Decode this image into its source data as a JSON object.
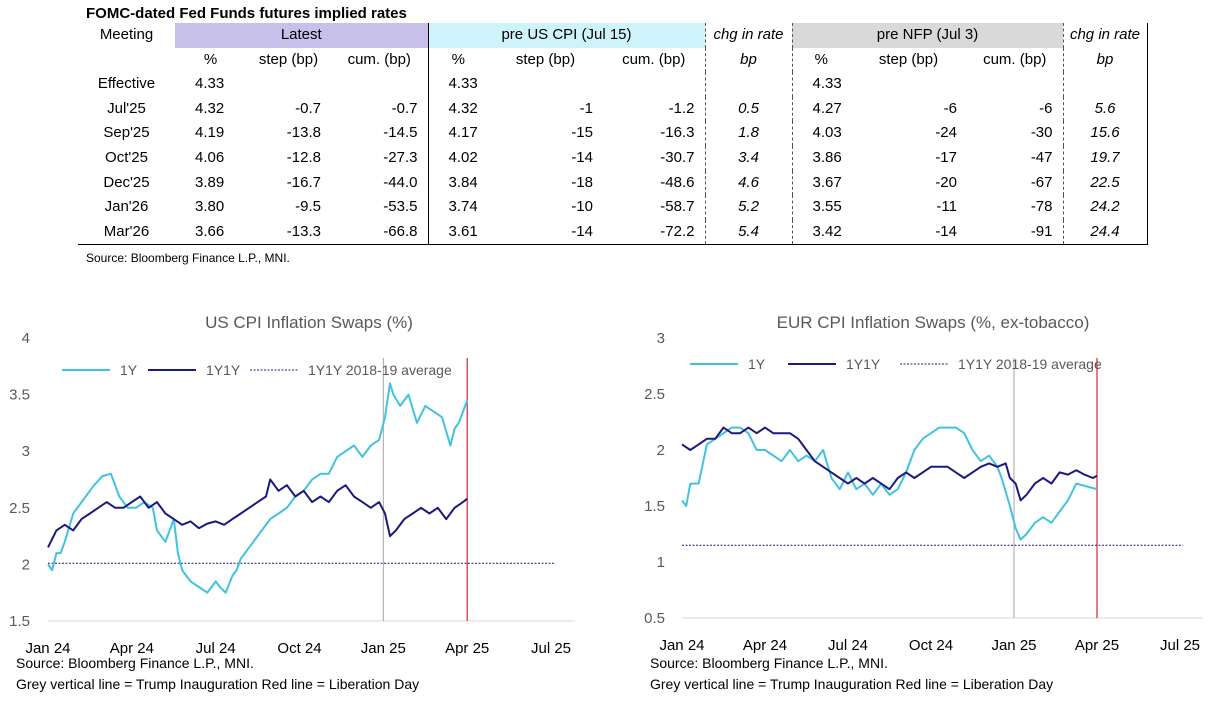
{
  "table": {
    "title": "FOMC-dated Fed Funds futures implied rates",
    "meeting_header": "Meeting",
    "group_headers": {
      "latest": "Latest",
      "pre_cpi": "pre US CPI (Jul 15)",
      "chg1": "chg in rate",
      "pre_nfp": "pre NFP (Jul 3)",
      "chg2": "chg in rate"
    },
    "sub_headers": {
      "pct": "%",
      "step": "step (bp)",
      "cum": "cum. (bp)",
      "bp": "bp"
    },
    "rows": [
      {
        "meeting": "Effective",
        "l_pct": "4.33",
        "l_step": "",
        "l_cum": "",
        "c_pct": "4.33",
        "c_step": "",
        "c_cum": "",
        "chg1": "",
        "n_pct": "4.33",
        "n_step": "",
        "n_cum": "",
        "chg2": ""
      },
      {
        "meeting": "Jul'25",
        "l_pct": "4.32",
        "l_step": "-0.7",
        "l_cum": "-0.7",
        "c_pct": "4.32",
        "c_step": "-1",
        "c_cum": "-1.2",
        "chg1": "0.5",
        "n_pct": "4.27",
        "n_step": "-6",
        "n_cum": "-6",
        "chg2": "5.6"
      },
      {
        "meeting": "Sep'25",
        "l_pct": "4.19",
        "l_step": "-13.8",
        "l_cum": "-14.5",
        "c_pct": "4.17",
        "c_step": "-15",
        "c_cum": "-16.3",
        "chg1": "1.8",
        "n_pct": "4.03",
        "n_step": "-24",
        "n_cum": "-30",
        "chg2": "15.6"
      },
      {
        "meeting": "Oct'25",
        "l_pct": "4.06",
        "l_step": "-12.8",
        "l_cum": "-27.3",
        "c_pct": "4.02",
        "c_step": "-14",
        "c_cum": "-30.7",
        "chg1": "3.4",
        "n_pct": "3.86",
        "n_step": "-17",
        "n_cum": "-47",
        "chg2": "19.7"
      },
      {
        "meeting": "Dec'25",
        "l_pct": "3.89",
        "l_step": "-16.7",
        "l_cum": "-44.0",
        "c_pct": "3.84",
        "c_step": "-18",
        "c_cum": "-48.6",
        "chg1": "4.6",
        "n_pct": "3.67",
        "n_step": "-20",
        "n_cum": "-67",
        "chg2": "22.5"
      },
      {
        "meeting": "Jan'26",
        "l_pct": "3.80",
        "l_step": "-9.5",
        "l_cum": "-53.5",
        "c_pct": "3.74",
        "c_step": "-10",
        "c_cum": "-58.7",
        "chg1": "5.2",
        "n_pct": "3.55",
        "n_step": "-11",
        "n_cum": "-78",
        "chg2": "24.2"
      },
      {
        "meeting": "Mar'26",
        "l_pct": "3.66",
        "l_step": "-13.3",
        "l_cum": "-66.8",
        "c_pct": "3.61",
        "c_step": "-14",
        "c_cum": "-72.2",
        "chg1": "5.4",
        "n_pct": "3.42",
        "n_step": "-14",
        "n_cum": "-91",
        "chg2": "24.4"
      }
    ],
    "source": "Source: Bloomberg Finance L.P., MNI."
  },
  "chart_data": [
    {
      "type": "line",
      "title": "US CPI Inflation Swaps (%)",
      "x_ticks": [
        "Jan 24",
        "Apr 24",
        "Jul 24",
        "Oct 24",
        "Jan 25",
        "Apr 25",
        "Jul 25"
      ],
      "y_ticks": [
        "4",
        "3.5",
        "3",
        "2.5",
        "2",
        "1.5"
      ],
      "ylim": [
        1.5,
        4
      ],
      "legend_position": "top-left",
      "vlines": {
        "grey": "Jan 25",
        "red": "Apr 25"
      },
      "reference_line": {
        "name": "1Y1Y 2018-19 average",
        "value": 2.01
      },
      "series": [
        {
          "name": "1Y",
          "color": "#41c3e0",
          "values": [
            [
              0,
              2.0
            ],
            [
              0.05,
              1.95
            ],
            [
              0.1,
              2.1
            ],
            [
              0.15,
              2.1
            ],
            [
              0.2,
              2.2
            ],
            [
              0.3,
              2.45
            ],
            [
              0.45,
              2.6
            ],
            [
              0.55,
              2.7
            ],
            [
              0.65,
              2.78
            ],
            [
              0.75,
              2.8
            ],
            [
              0.85,
              2.6
            ],
            [
              0.95,
              2.5
            ],
            [
              1.05,
              2.5
            ],
            [
              1.15,
              2.55
            ],
            [
              1.25,
              2.5
            ],
            [
              1.3,
              2.3
            ],
            [
              1.4,
              2.2
            ],
            [
              1.5,
              2.4
            ],
            [
              1.55,
              2.1
            ],
            [
              1.6,
              1.95
            ],
            [
              1.7,
              1.85
            ],
            [
              1.8,
              1.8
            ],
            [
              1.9,
              1.75
            ],
            [
              2.0,
              1.85
            ],
            [
              2.05,
              1.8
            ],
            [
              2.12,
              1.75
            ],
            [
              2.2,
              1.9
            ],
            [
              2.25,
              1.95
            ],
            [
              2.3,
              2.05
            ],
            [
              2.35,
              2.1
            ],
            [
              2.45,
              2.2
            ],
            [
              2.55,
              2.3
            ],
            [
              2.65,
              2.4
            ],
            [
              2.75,
              2.45
            ],
            [
              2.85,
              2.5
            ],
            [
              2.95,
              2.6
            ],
            [
              3.05,
              2.65
            ],
            [
              3.15,
              2.75
            ],
            [
              3.25,
              2.8
            ],
            [
              3.35,
              2.8
            ],
            [
              3.45,
              2.95
            ],
            [
              3.55,
              3.0
            ],
            [
              3.65,
              3.05
            ],
            [
              3.75,
              2.95
            ],
            [
              3.85,
              3.05
            ],
            [
              3.95,
              3.1
            ],
            [
              4.02,
              3.3
            ],
            [
              4.08,
              3.6
            ],
            [
              4.12,
              3.5
            ],
            [
              4.2,
              3.4
            ],
            [
              4.3,
              3.5
            ],
            [
              4.4,
              3.25
            ],
            [
              4.5,
              3.4
            ],
            [
              4.6,
              3.35
            ],
            [
              4.7,
              3.3
            ],
            [
              4.8,
              3.05
            ],
            [
              4.85,
              3.2
            ],
            [
              4.9,
              3.25
            ],
            [
              4.95,
              3.35
            ],
            [
              5.0,
              3.45
            ]
          ]
        },
        {
          "name": "1Y1Y",
          "color": "#1c1a7e",
          "values": [
            [
              0,
              2.15
            ],
            [
              0.1,
              2.3
            ],
            [
              0.2,
              2.35
            ],
            [
              0.3,
              2.3
            ],
            [
              0.4,
              2.4
            ],
            [
              0.5,
              2.45
            ],
            [
              0.6,
              2.5
            ],
            [
              0.7,
              2.55
            ],
            [
              0.8,
              2.5
            ],
            [
              0.9,
              2.5
            ],
            [
              1.0,
              2.55
            ],
            [
              1.1,
              2.6
            ],
            [
              1.2,
              2.5
            ],
            [
              1.3,
              2.55
            ],
            [
              1.4,
              2.45
            ],
            [
              1.5,
              2.4
            ],
            [
              1.6,
              2.35
            ],
            [
              1.7,
              2.38
            ],
            [
              1.8,
              2.32
            ],
            [
              1.9,
              2.36
            ],
            [
              2.0,
              2.38
            ],
            [
              2.1,
              2.35
            ],
            [
              2.2,
              2.4
            ],
            [
              2.3,
              2.45
            ],
            [
              2.4,
              2.5
            ],
            [
              2.5,
              2.55
            ],
            [
              2.6,
              2.6
            ],
            [
              2.65,
              2.75
            ],
            [
              2.75,
              2.65
            ],
            [
              2.85,
              2.7
            ],
            [
              2.95,
              2.6
            ],
            [
              3.05,
              2.65
            ],
            [
              3.15,
              2.55
            ],
            [
              3.25,
              2.6
            ],
            [
              3.35,
              2.55
            ],
            [
              3.45,
              2.65
            ],
            [
              3.55,
              2.7
            ],
            [
              3.65,
              2.6
            ],
            [
              3.75,
              2.55
            ],
            [
              3.85,
              2.5
            ],
            [
              3.95,
              2.55
            ],
            [
              4.02,
              2.45
            ],
            [
              4.08,
              2.25
            ],
            [
              4.15,
              2.3
            ],
            [
              4.25,
              2.4
            ],
            [
              4.35,
              2.45
            ],
            [
              4.45,
              2.5
            ],
            [
              4.55,
              2.45
            ],
            [
              4.65,
              2.5
            ],
            [
              4.75,
              2.4
            ],
            [
              4.85,
              2.5
            ],
            [
              4.95,
              2.55
            ],
            [
              5.0,
              2.58
            ]
          ]
        }
      ]
    },
    {
      "type": "line",
      "title": "EUR CPI Inflation Swaps (%, ex-tobacco)",
      "x_ticks": [
        "Jan 24",
        "Apr 24",
        "Jul 24",
        "Oct 24",
        "Jan 25",
        "Apr 25",
        "Jul 25"
      ],
      "y_ticks": [
        "3",
        "2.5",
        "2",
        "1.5",
        "1",
        "0.5"
      ],
      "ylim": [
        0.5,
        3
      ],
      "legend_position": "top-left",
      "vlines": {
        "grey": "Jan 25",
        "red": "Apr 25"
      },
      "reference_line": {
        "name": "1Y1Y 2018-19 average",
        "value": 1.15
      },
      "series": [
        {
          "name": "1Y",
          "color": "#41c3e0",
          "values": [
            [
              0,
              1.55
            ],
            [
              0.05,
              1.5
            ],
            [
              0.1,
              1.7
            ],
            [
              0.2,
              1.7
            ],
            [
              0.3,
              2.05
            ],
            [
              0.4,
              2.1
            ],
            [
              0.5,
              2.15
            ],
            [
              0.6,
              2.2
            ],
            [
              0.7,
              2.2
            ],
            [
              0.8,
              2.15
            ],
            [
              0.9,
              2.0
            ],
            [
              1.0,
              2.0
            ],
            [
              1.1,
              1.95
            ],
            [
              1.2,
              1.9
            ],
            [
              1.3,
              2.0
            ],
            [
              1.4,
              1.9
            ],
            [
              1.5,
              1.95
            ],
            [
              1.6,
              1.9
            ],
            [
              1.7,
              2.0
            ],
            [
              1.8,
              1.75
            ],
            [
              1.9,
              1.65
            ],
            [
              2.0,
              1.8
            ],
            [
              2.1,
              1.65
            ],
            [
              2.2,
              1.7
            ],
            [
              2.3,
              1.6
            ],
            [
              2.4,
              1.7
            ],
            [
              2.5,
              1.6
            ],
            [
              2.6,
              1.65
            ],
            [
              2.7,
              1.8
            ],
            [
              2.8,
              2.0
            ],
            [
              2.9,
              2.1
            ],
            [
              3.0,
              2.15
            ],
            [
              3.1,
              2.2
            ],
            [
              3.2,
              2.2
            ],
            [
              3.3,
              2.2
            ],
            [
              3.4,
              2.15
            ],
            [
              3.5,
              2.0
            ],
            [
              3.6,
              1.9
            ],
            [
              3.7,
              1.95
            ],
            [
              3.8,
              1.85
            ],
            [
              3.85,
              1.75
            ],
            [
              3.95,
              1.5
            ],
            [
              4.02,
              1.3
            ],
            [
              4.08,
              1.2
            ],
            [
              4.15,
              1.25
            ],
            [
              4.25,
              1.35
            ],
            [
              4.35,
              1.4
            ],
            [
              4.45,
              1.35
            ],
            [
              4.55,
              1.45
            ],
            [
              4.65,
              1.55
            ],
            [
              4.75,
              1.7
            ],
            [
              4.85,
              1.68
            ],
            [
              4.95,
              1.66
            ],
            [
              5.0,
              1.65
            ]
          ]
        },
        {
          "name": "1Y1Y",
          "color": "#1c1a7e",
          "values": [
            [
              0,
              2.05
            ],
            [
              0.1,
              2.0
            ],
            [
              0.2,
              2.05
            ],
            [
              0.3,
              2.1
            ],
            [
              0.4,
              2.1
            ],
            [
              0.5,
              2.2
            ],
            [
              0.6,
              2.15
            ],
            [
              0.7,
              2.15
            ],
            [
              0.8,
              2.2
            ],
            [
              0.9,
              2.15
            ],
            [
              1.0,
              2.2
            ],
            [
              1.1,
              2.15
            ],
            [
              1.2,
              2.15
            ],
            [
              1.3,
              2.15
            ],
            [
              1.4,
              2.1
            ],
            [
              1.5,
              2.0
            ],
            [
              1.6,
              1.9
            ],
            [
              1.7,
              1.85
            ],
            [
              1.8,
              1.8
            ],
            [
              1.9,
              1.75
            ],
            [
              2.0,
              1.7
            ],
            [
              2.1,
              1.75
            ],
            [
              2.2,
              1.7
            ],
            [
              2.3,
              1.75
            ],
            [
              2.4,
              1.7
            ],
            [
              2.5,
              1.65
            ],
            [
              2.6,
              1.75
            ],
            [
              2.7,
              1.8
            ],
            [
              2.8,
              1.75
            ],
            [
              2.9,
              1.8
            ],
            [
              3.0,
              1.85
            ],
            [
              3.1,
              1.85
            ],
            [
              3.2,
              1.85
            ],
            [
              3.3,
              1.8
            ],
            [
              3.4,
              1.75
            ],
            [
              3.5,
              1.8
            ],
            [
              3.6,
              1.85
            ],
            [
              3.7,
              1.88
            ],
            [
              3.8,
              1.85
            ],
            [
              3.9,
              1.88
            ],
            [
              3.95,
              1.75
            ],
            [
              4.02,
              1.7
            ],
            [
              4.08,
              1.55
            ],
            [
              4.15,
              1.6
            ],
            [
              4.25,
              1.7
            ],
            [
              4.35,
              1.75
            ],
            [
              4.45,
              1.7
            ],
            [
              4.55,
              1.8
            ],
            [
              4.65,
              1.78
            ],
            [
              4.75,
              1.82
            ],
            [
              4.85,
              1.78
            ],
            [
              4.95,
              1.75
            ],
            [
              5.0,
              1.77
            ]
          ]
        }
      ]
    }
  ],
  "notes": {
    "left_source": "Source: Bloomberg Finance L.P., MNI.",
    "left_lines": "Grey vertical line = Trump Inauguration  Red line = Liberation Day",
    "right_source": "Source: Bloomberg Finance L.P., MNI.",
    "right_lines": "Grey vertical line = Trump Inauguration  Red line = Liberation Day"
  }
}
